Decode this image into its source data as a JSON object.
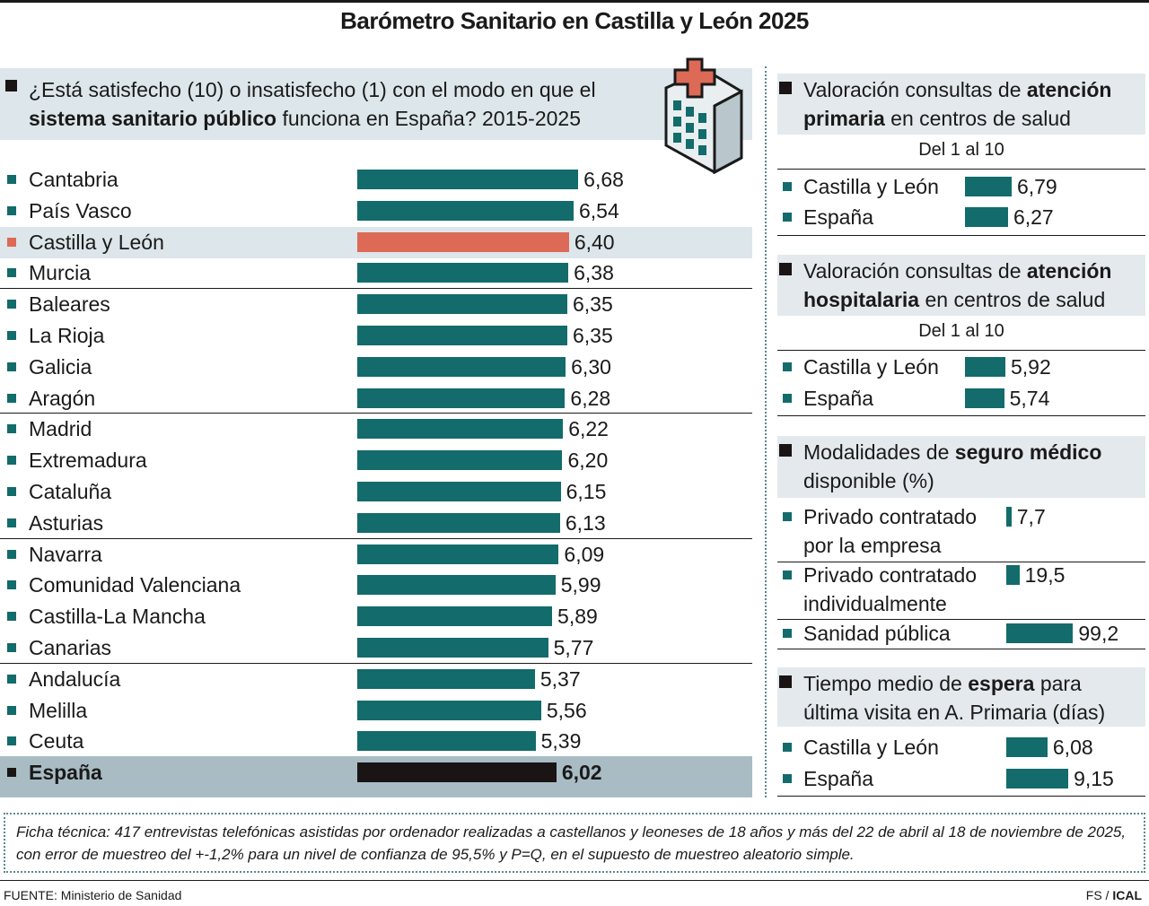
{
  "title": "Barómetro Sanitario en Castilla y León 2025",
  "chart_data": [
    {
      "type": "bar",
      "orientation": "horizontal",
      "title_parts": [
        {
          "text": "¿Está satisfecho (10) o insatisfecho (1) con el modo en que el",
          "bold": false
        },
        {
          "text": "sistema sanitario público",
          "bold": true
        },
        {
          "text": "funciona en España? 2015-2025",
          "bold": false
        }
      ],
      "categories": [
        "Cantabria",
        "País Vasco",
        "Castilla y León",
        "Murcia",
        "Baleares",
        "La Rioja",
        "Galicia",
        "Aragón",
        "Madrid",
        "Extremadura",
        "Cataluña",
        "Asturias",
        "Navarra",
        "Comunidad Valenciana",
        "Castilla-La Mancha",
        "Canarias",
        "Andalucía",
        "Melilla",
        "Ceuta",
        "España"
      ],
      "values": [
        6.68,
        6.54,
        6.4,
        6.38,
        6.35,
        6.35,
        6.3,
        6.28,
        6.22,
        6.2,
        6.15,
        6.13,
        6.09,
        5.99,
        5.89,
        5.77,
        5.37,
        5.56,
        5.39,
        6.02
      ],
      "value_labels": [
        "6,68",
        "6,54",
        "6,40",
        "6,38",
        "6,35",
        "6,35",
        "6,30",
        "6,28",
        "6,22",
        "6,20",
        "6,15",
        "6,13",
        "6,09",
        "5,99",
        "5,89",
        "5,77",
        "5,37",
        "5,56",
        "5,39",
        "6,02"
      ],
      "colors": [
        "#136b6b",
        "#136b6b",
        "#dc6a56",
        "#136b6b",
        "#136b6b",
        "#136b6b",
        "#136b6b",
        "#136b6b",
        "#136b6b",
        "#136b6b",
        "#136b6b",
        "#136b6b",
        "#136b6b",
        "#136b6b",
        "#136b6b",
        "#136b6b",
        "#136b6b",
        "#136b6b",
        "#136b6b",
        "#1a1414"
      ]
    },
    {
      "type": "bar",
      "orientation": "horizontal",
      "title_parts": [
        {
          "text": "Valoración consultas de",
          "bold": false
        },
        {
          "text": "atención primaria",
          "bold": true
        },
        {
          "text": "en centros de salud",
          "bold": false
        }
      ],
      "subtitle": "Del 1 al 10",
      "categories": [
        "Castilla y León",
        "España"
      ],
      "values": [
        6.79,
        6.27
      ],
      "value_labels": [
        "6,79",
        "6,27"
      ],
      "color": "#136b6b"
    },
    {
      "type": "bar",
      "orientation": "horizontal",
      "title_parts": [
        {
          "text": "Valoración consultas de",
          "bold": false
        },
        {
          "text": "atención hospitalaria",
          "bold": true
        },
        {
          "text": "en centros de salud",
          "bold": false
        }
      ],
      "subtitle": "Del 1 al 10",
      "categories": [
        "Castilla y León",
        "España"
      ],
      "values": [
        5.92,
        5.74
      ],
      "value_labels": [
        "5,92",
        "5,74"
      ],
      "color": "#136b6b"
    },
    {
      "type": "bar",
      "orientation": "horizontal",
      "title_parts": [
        {
          "text": "Modalidades de",
          "bold": false
        },
        {
          "text": "seguro médico",
          "bold": true
        },
        {
          "text": "disponible (%)",
          "bold": false
        }
      ],
      "categories": [
        "Privado contratado por la empresa",
        "Privado contratado individualmente",
        "Sanidad pública"
      ],
      "values": [
        7.7,
        19.5,
        99.2
      ],
      "value_labels": [
        "7,7",
        "19,5",
        "99,2"
      ],
      "color": "#136b6b"
    },
    {
      "type": "bar",
      "orientation": "horizontal",
      "title_parts": [
        {
          "text": "Tiempo medio de",
          "bold": false
        },
        {
          "text": "espera",
          "bold": true
        },
        {
          "text": "para última visita en A. Primaria (días)",
          "bold": false
        }
      ],
      "categories": [
        "Castilla y León",
        "España"
      ],
      "values": [
        6.08,
        9.15
      ],
      "value_labels": [
        "6,08",
        "9,15"
      ],
      "color": "#136b6b"
    }
  ],
  "note": "Ficha técnica: 417 entrevistas telefónicas asistidas por ordenador realizadas a castellanos y leoneses de 18 años y más del 22 de abril al 18 de noviembre de 2025, con error de muestreo del +-1,2% para un nivel de confianza de 95,5% y P=Q, en el supuesto de muestreo aleatorio simple.",
  "source": "FUENTE: Ministerio de Sanidad",
  "credit_parts": [
    {
      "text": "FS /",
      "bold": false
    },
    {
      "text": "ICAL",
      "bold": true
    }
  ]
}
